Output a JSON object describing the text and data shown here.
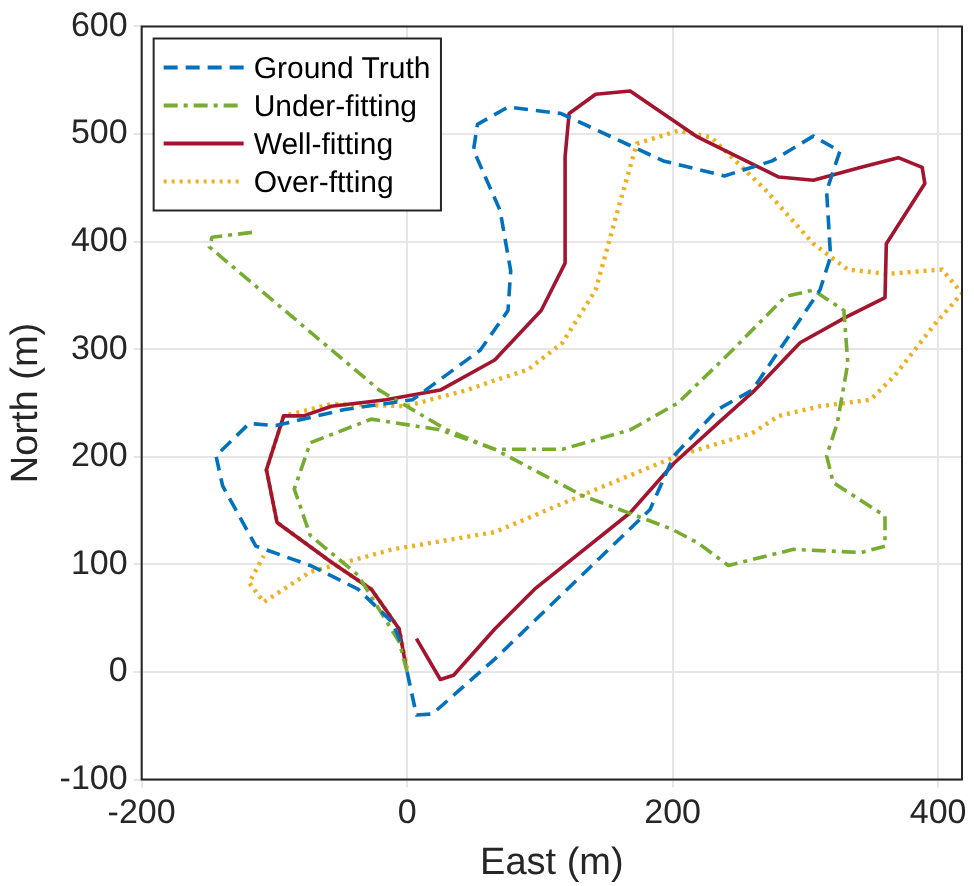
{
  "chart_data": {
    "type": "line",
    "xlabel": "East (m)",
    "ylabel": "North (m)",
    "xlim": [
      -200,
      418
    ],
    "xticks": [
      -200,
      0,
      200,
      400
    ],
    "ylim": [
      -100,
      600
    ],
    "yticks": [
      -100,
      0,
      100,
      200,
      300,
      400,
      500,
      600
    ],
    "grid": true,
    "legend": "top left",
    "marker": "none",
    "series": [
      {
        "name": "Ground Truth",
        "color": "#0072bd",
        "line_style": "dashed",
        "x": [
          0,
          7,
          19,
          66,
          183,
          201,
          234,
          260,
          311,
          319,
          316,
          326,
          306,
          275,
          239,
          193,
          116,
          76,
          53,
          50,
          70,
          78,
          76,
          55,
          4,
          -47,
          -99,
          -119,
          -144,
          -139,
          -114,
          -73,
          -37,
          -11,
          -4
        ],
        "values": [
          0,
          -40,
          -39,
          12,
          151,
          201,
          244,
          262,
          355,
          386,
          447,
          484,
          498,
          475,
          461,
          475,
          519,
          525,
          509,
          485,
          429,
          373,
          336,
          299,
          253,
          244,
          229,
          231,
          201,
          173,
          117,
          99,
          77,
          46,
          25
        ]
      },
      {
        "name": "Under-fitting",
        "color": "#77ac30",
        "line_style": "dashdot",
        "x": [
          0,
          -6,
          -37,
          -73,
          -85,
          -73,
          -27,
          25,
          66,
          117,
          168,
          204,
          245,
          285,
          306,
          329,
          332,
          324,
          316,
          321,
          360,
          360,
          342,
          291,
          242,
          219,
          199,
          132,
          66,
          30,
          -21,
          -149,
          -147,
          -114
        ],
        "values": [
          0,
          28,
          90,
          127,
          170,
          213,
          235,
          225,
          207,
          207,
          225,
          250,
          299,
          349,
          355,
          336,
          287,
          231,
          201,
          176,
          145,
          117,
          111,
          114,
          99,
          120,
          133,
          164,
          207,
          225,
          262,
          395,
          404,
          409
        ]
      },
      {
        "name": "Well-fitting",
        "color": "#a2142f",
        "line_style": "solid",
        "x": [
          7,
          25,
          35,
          66,
          96,
          168,
          201,
          234,
          262,
          296,
          331,
          360,
          361,
          390,
          388,
          370,
          342,
          306,
          280,
          219,
          168,
          142,
          122,
          119,
          119,
          101,
          66,
          25,
          -16,
          -57,
          -78,
          -93,
          -106,
          -98,
          -57,
          -27,
          -6,
          -1
        ],
        "values": [
          31,
          -7,
          -3,
          40,
          77,
          148,
          194,
          231,
          262,
          306,
          330,
          348,
          398,
          454,
          469,
          478,
          469,
          457,
          460,
          497,
          540,
          537,
          519,
          479,
          380,
          336,
          290,
          262,
          253,
          247,
          238,
          238,
          188,
          139,
          102,
          77,
          40,
          6
        ]
      },
      {
        "name": "Over-ftting",
        "color": "#edb120",
        "line_style": "dotted",
        "x": [
          0,
          -6,
          -27,
          -57,
          -98,
          -106,
          -93,
          -57,
          -1,
          45,
          66,
          91,
          117,
          142,
          160,
          173,
          204,
          229,
          270,
          306,
          332,
          362,
          403,
          418,
          398,
          367,
          349,
          311,
          280,
          260,
          204,
          137,
          66,
          -11,
          -73,
          -108,
          -119,
          -108
        ],
        "values": [
          3,
          40,
          77,
          102,
          139,
          188,
          238,
          249,
          247,
          262,
          271,
          281,
          306,
          355,
          435,
          491,
          503,
          497,
          448,
          398,
          374,
          370,
          374,
          352,
          324,
          275,
          253,
          247,
          238,
          222,
          201,
          167,
          130,
          114,
          93,
          65,
          83,
          108
        ]
      }
    ]
  }
}
